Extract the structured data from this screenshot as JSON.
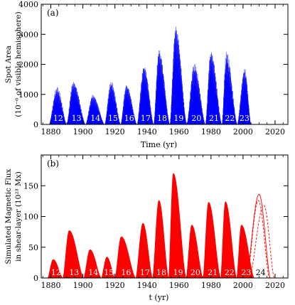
{
  "chart_data": [
    {
      "panel": "(a)",
      "type": "area",
      "color": "#0000ff",
      "xlabel": "Time (yr)",
      "ylabel_line1": "Spot Area",
      "ylabel_line2": "(10⁻⁶ of visible hemisphere)",
      "xlim": [
        1874,
        2028
      ],
      "ylim": [
        0,
        4000
      ],
      "xticks": [
        "1880",
        "1900",
        "1920",
        "1940",
        "1960",
        "1980",
        "2000",
        "2020"
      ],
      "yticks": [
        "0",
        "1000",
        "2000",
        "3000",
        "4000"
      ],
      "cycles": [
        {
          "label": "12",
          "start": 1878.9,
          "max": 1883.9,
          "end": 1889.9,
          "peak": 1250
        },
        {
          "label": "13",
          "start": 1889.9,
          "max": 1894.0,
          "end": 1901.7,
          "peak": 1450
        },
        {
          "label": "14",
          "start": 1901.7,
          "max": 1906.2,
          "end": 1913.6,
          "peak": 1000
        },
        {
          "label": "15",
          "start": 1913.6,
          "max": 1917.6,
          "end": 1923.6,
          "peak": 1450
        },
        {
          "label": "16",
          "start": 1923.6,
          "max": 1927.2,
          "end": 1933.8,
          "peak": 1350
        },
        {
          "label": "17",
          "start": 1933.8,
          "max": 1938.2,
          "end": 1944.2,
          "peak": 2000
        },
        {
          "label": "18",
          "start": 1944.2,
          "max": 1947.5,
          "end": 1954.3,
          "peak": 2550
        },
        {
          "label": "19",
          "start": 1954.3,
          "max": 1957.9,
          "end": 1964.9,
          "peak": 3350
        },
        {
          "label": "20",
          "start": 1964.9,
          "max": 1969.5,
          "end": 1976.5,
          "peak": 2050
        },
        {
          "label": "21",
          "start": 1976.5,
          "max": 1979.9,
          "end": 1986.8,
          "peak": 2500
        },
        {
          "label": "22",
          "start": 1986.8,
          "max": 1989.6,
          "end": 1996.4,
          "peak": 2450
        },
        {
          "label": "23",
          "start": 1996.4,
          "max": 2001.0,
          "end": 2005.0,
          "peak": 1900
        }
      ]
    },
    {
      "panel": "(b)",
      "type": "area",
      "color": "#ff0000",
      "xlabel": "t (yr)",
      "ylabel_line1": "Simulated Magnetic Flux",
      "ylabel_line2": "in shear-layer (10²³ Mx)",
      "xlim": [
        1874,
        2028
      ],
      "ylim": [
        0,
        200
      ],
      "xticks": [
        "1880",
        "1900",
        "1920",
        "1940",
        "1960",
        "1980",
        "2000",
        "2020"
      ],
      "yticks": [
        "0",
        "50",
        "100",
        "150"
      ],
      "cycles": [
        {
          "label": "12",
          "start": 1878.0,
          "max": 1881.5,
          "end": 1887.5,
          "peak": 30
        },
        {
          "label": "13",
          "start": 1887.5,
          "max": 1891.5,
          "end": 1900.5,
          "peak": 77
        },
        {
          "label": "14",
          "start": 1900.5,
          "max": 1904.5,
          "end": 1911.5,
          "peak": 46
        },
        {
          "label": "15",
          "start": 1911.5,
          "max": 1915.0,
          "end": 1920.0,
          "peak": 34
        },
        {
          "label": "16",
          "start": 1920.0,
          "max": 1924.0,
          "end": 1933.0,
          "peak": 67
        },
        {
          "label": "17",
          "start": 1933.0,
          "max": 1937.5,
          "end": 1943.5,
          "peak": 89
        },
        {
          "label": "18",
          "start": 1943.5,
          "max": 1947.5,
          "end": 1953.5,
          "peak": 126
        },
        {
          "label": "19",
          "start": 1953.5,
          "max": 1956.5,
          "end": 1964.5,
          "peak": 170
        },
        {
          "label": "20",
          "start": 1964.5,
          "max": 1968.0,
          "end": 1975.0,
          "peak": 86
        },
        {
          "label": "21",
          "start": 1975.0,
          "max": 1978.5,
          "end": 1986.0,
          "peak": 123
        },
        {
          "label": "22",
          "start": 1986.0,
          "max": 1989.0,
          "end": 1996.0,
          "peak": 124
        },
        {
          "label": "23",
          "start": 1996.0,
          "max": 1999.0,
          "end": 2007.0,
          "peak": 86
        }
      ],
      "prediction": {
        "label": "24",
        "curves": [
          {
            "start": 2002.0,
            "max": 2010.0,
            "end": 2017.0,
            "peak": 136,
            "style": "solid"
          },
          {
            "start": 2002.5,
            "max": 2009.5,
            "end": 2016.5,
            "peak": 126,
            "style": "dashed"
          },
          {
            "start": 2004.0,
            "max": 2013.0,
            "end": 2019.5,
            "peak": 118,
            "style": "dashed"
          }
        ]
      }
    }
  ]
}
